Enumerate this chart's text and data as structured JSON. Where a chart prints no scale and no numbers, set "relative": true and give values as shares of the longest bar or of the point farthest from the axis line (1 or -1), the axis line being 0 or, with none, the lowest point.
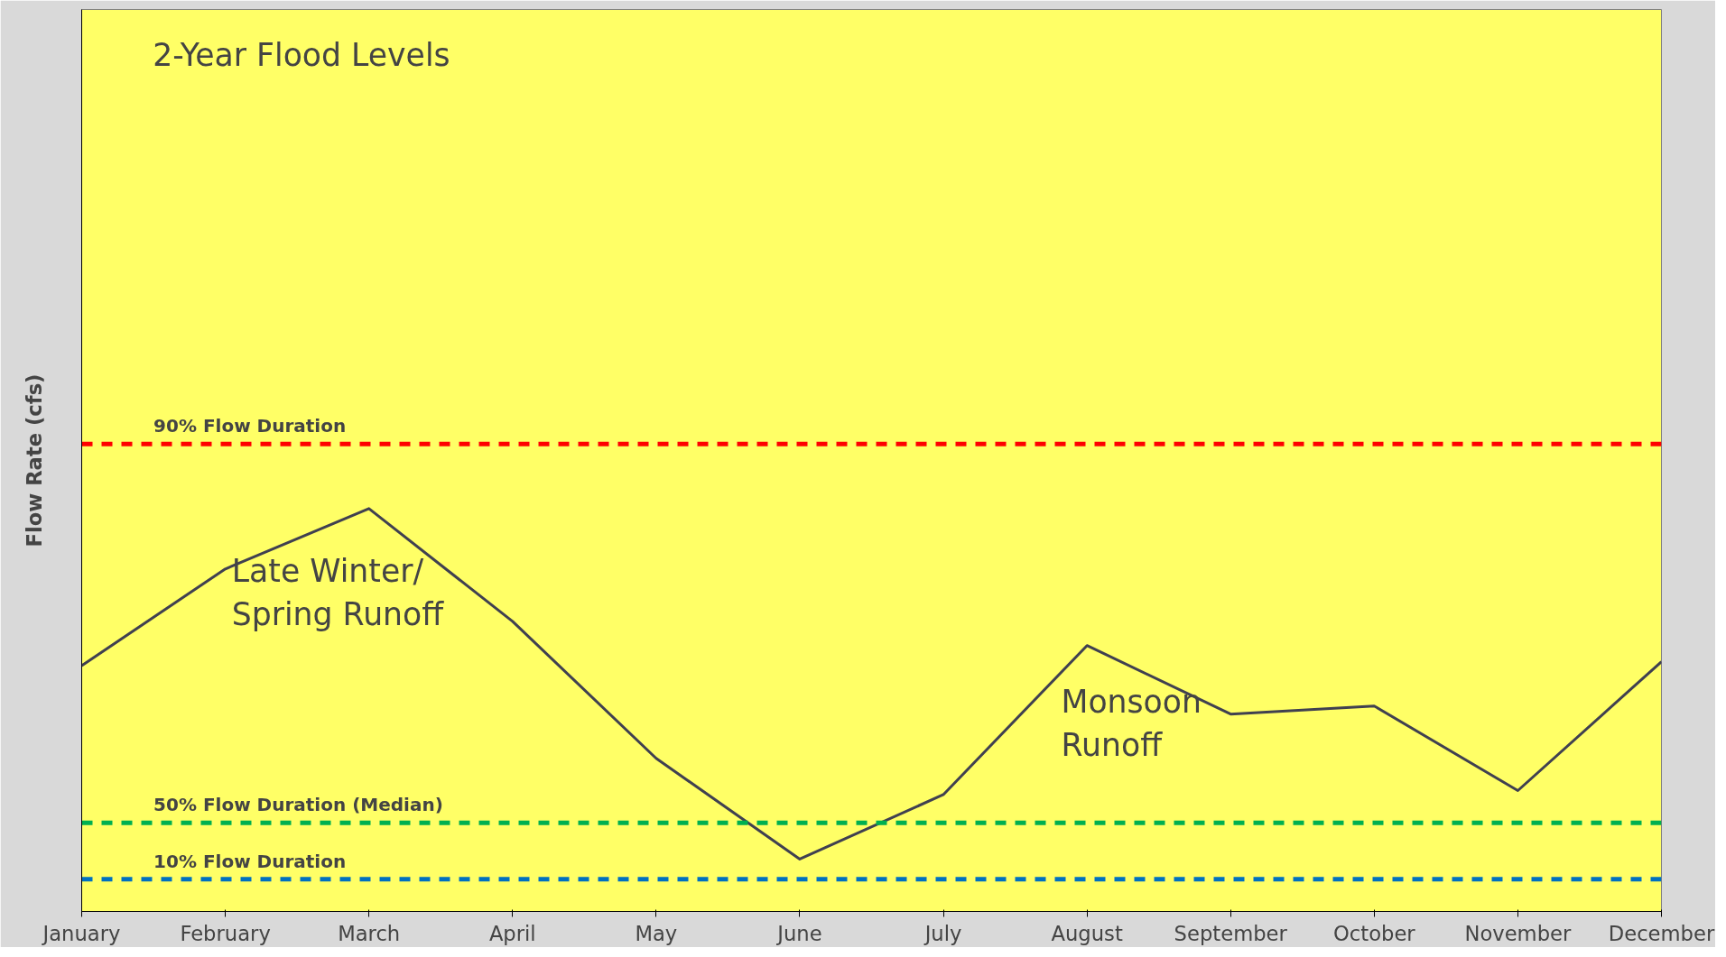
{
  "chart_data": {
    "type": "line",
    "relative": true,
    "ylabel": "Flow Rate (cfs)",
    "categories": [
      "January",
      "February",
      "March",
      "April",
      "May",
      "June",
      "July",
      "August",
      "September",
      "October",
      "November",
      "December"
    ],
    "series": [
      {
        "color": "#404050",
        "values": [
          0.61,
          0.85,
          1.0,
          0.72,
          0.38,
          0.13,
          0.29,
          0.66,
          0.49,
          0.51,
          0.3,
          0.62
        ]
      }
    ],
    "ref_lines": [
      {
        "axis": "y",
        "value": 1.16,
        "label": "90% Flow Duration",
        "color": "#ff0000",
        "line_style": "dashed"
      },
      {
        "axis": "y",
        "value": 0.22,
        "label": "50% Flow Duration (Median)",
        "color": "#00b050",
        "line_style": "dashed"
      },
      {
        "axis": "y",
        "value": 0.08,
        "label": "10% Flow Duration",
        "color": "#0070c0",
        "line_style": "dashed"
      }
    ],
    "annotations": [
      "2-Year Flood Levels",
      "Late Winter/\nSpring Runoff",
      "Monsoon\nRunoff"
    ],
    "grid": false,
    "marker": "none",
    "line_style": "solid"
  }
}
